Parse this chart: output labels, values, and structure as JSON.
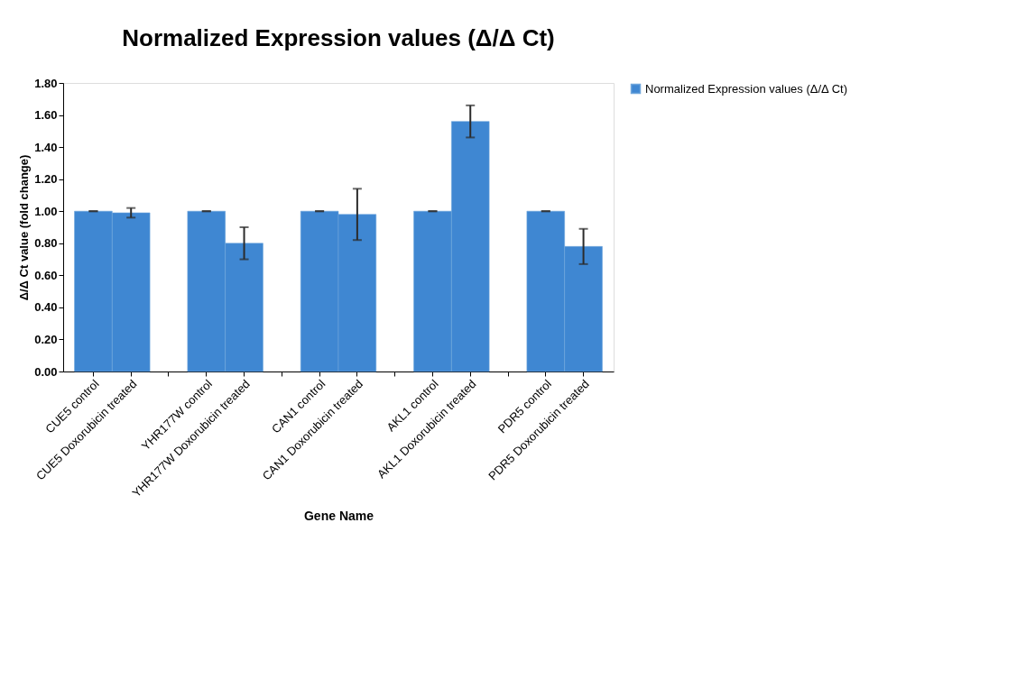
{
  "chart_data": {
    "type": "bar",
    "title": "Normalized Expression values (Δ/Δ Ct)",
    "xlabel": "Gene Name",
    "ylabel": "Δ/Δ Ct  value  (fold change)",
    "categories": [
      "CUE5 control",
      "CUE5 Doxorubicin treated",
      null,
      "YHR177W control",
      "YHR177W Doxorubicin treated",
      null,
      "CAN1 control",
      "CAN1 Doxorubicin treated",
      null,
      "AKL1 control",
      "AKL1 Doxorubicin treated",
      null,
      "PDR5 control",
      "PDR5 Doxorubicin treated"
    ],
    "series": [
      {
        "name": "Normalized Expression values (Δ/Δ Ct)",
        "color": "#3f87d2",
        "values": [
          1.0,
          0.99,
          null,
          1.0,
          0.8,
          null,
          1.0,
          0.98,
          null,
          1.0,
          1.56,
          null,
          1.0,
          0.78
        ],
        "errors": [
          0,
          0.03,
          null,
          0,
          0.1,
          null,
          0,
          0.16,
          null,
          0,
          0.1,
          null,
          0,
          0.11
        ]
      }
    ],
    "ylim": [
      0,
      1.8
    ],
    "yticks": [
      {
        "value": 0,
        "label": "0.00"
      },
      {
        "value": 0.2,
        "label": "0.20"
      },
      {
        "value": 0.4,
        "label": "0.40"
      },
      {
        "value": 0.6,
        "label": "0.60"
      },
      {
        "value": 0.8,
        "label": "0.80"
      },
      {
        "value": 1.0,
        "label": "1.00"
      },
      {
        "value": 1.2,
        "label": "1.20"
      },
      {
        "value": 1.4,
        "label": "1.40"
      },
      {
        "value": 1.6,
        "label": "1.60"
      },
      {
        "value": 1.8,
        "label": "1.80"
      }
    ],
    "grid": false,
    "legend": "right"
  }
}
